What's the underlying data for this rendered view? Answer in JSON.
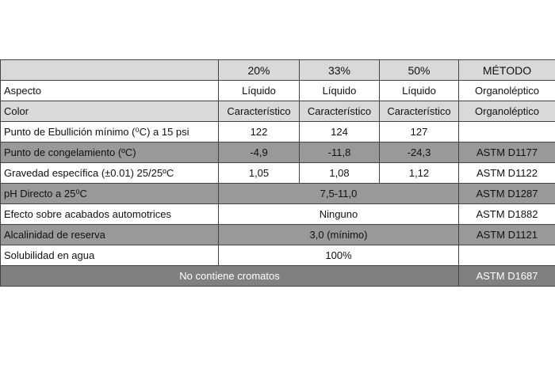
{
  "table": {
    "columns": [
      "20%",
      "33%",
      "50%",
      "MÉTODO"
    ],
    "rows": [
      {
        "label": "Aspecto",
        "values": [
          "Líquido",
          "Líquido",
          "Líquido"
        ],
        "method": "Organoléptico"
      },
      {
        "label": "Color",
        "values": [
          "Característico",
          "Característico",
          "Característico"
        ],
        "method": "Organoléptico"
      },
      {
        "label": "Punto de Ebullición  mínimo (⁰C) a 15 psi",
        "values": [
          "122",
          "124",
          "127"
        ]
      },
      {
        "label": "Punto de congelamiento (ºC)",
        "values": [
          "-4,9",
          "-11,8",
          "-24,3"
        ],
        "method": "ASTM D1177"
      },
      {
        "label": "Gravedad específica (±0.01) 25/25ºC",
        "values": [
          "1,05",
          "1,08",
          "1,12"
        ],
        "method": "ASTM D1122"
      },
      {
        "label": "pH Directo a 25⁰C",
        "values": [
          "7,5-11,0"
        ],
        "method": "ASTM D1287"
      },
      {
        "label": "Efecto sobre acabados automotrices",
        "values": [
          "Ninguno"
        ],
        "method": "ASTM D1882"
      },
      {
        "label": "Alcalinidad de reserva",
        "values": [
          "3,0 (mínimo)"
        ],
        "method": "ASTM D1121"
      },
      {
        "label": "Solubilidad en agua",
        "values": [
          "100%"
        ]
      },
      {
        "label": "No contiene cromatos",
        "method": "ASTM D1687"
      }
    ]
  }
}
